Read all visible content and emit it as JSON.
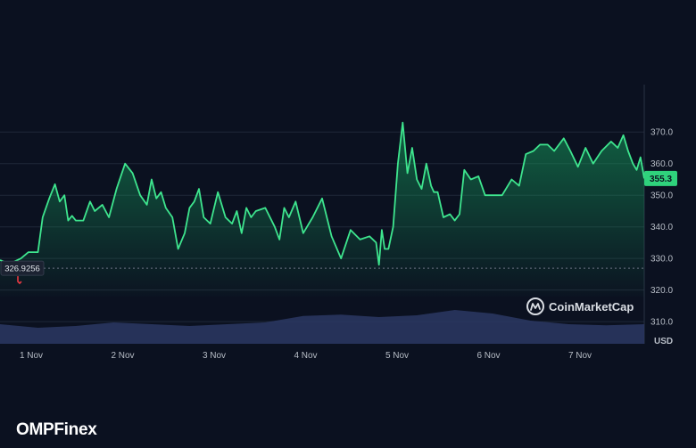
{
  "brand": "OMPFinex",
  "watermark": "CoinMarketCap",
  "chart_data": {
    "type": "area",
    "currency_label": "USD",
    "x_tick_labels": [
      "1 Nov",
      "2 Nov",
      "3 Nov",
      "4 Nov",
      "5 Nov",
      "6 Nov",
      "7 Nov"
    ],
    "y_ticks": [
      310,
      320,
      330,
      340,
      350,
      360,
      370
    ],
    "y_tick_labels": [
      "310.0",
      "320.0",
      "330.0",
      "340.0",
      "350.0",
      "360.0",
      "370.0"
    ],
    "ylim": [
      303,
      385
    ],
    "xlim": [
      0,
      6.8
    ],
    "grid": true,
    "open_price": 326.9256,
    "open_price_label": "326.9256",
    "current_price": 355.3,
    "current_price_label": "355.3",
    "colors": {
      "line": "#3ee58e",
      "area_top": "#16a35f",
      "current_tag": "#2fd27c",
      "open_marker": "#ea3943",
      "volume": "#2c3864",
      "grid": "#1f2838",
      "background": "#0b1120"
    },
    "series": [
      {
        "x": [
          0.0,
          0.08,
          0.15,
          0.22,
          0.3,
          0.4,
          0.45,
          0.52,
          0.58,
          0.63,
          0.68,
          0.72,
          0.76,
          0.8,
          0.88,
          0.95,
          1.0,
          1.08,
          1.15,
          1.23,
          1.32,
          1.4,
          1.48,
          1.55,
          1.6,
          1.65,
          1.7,
          1.75,
          1.82,
          1.88,
          1.95,
          2.0,
          2.05,
          2.1,
          2.15,
          2.22,
          2.3,
          2.38,
          2.45,
          2.5,
          2.55,
          2.6,
          2.65,
          2.7,
          2.8,
          2.9,
          2.95,
          3.0,
          3.05,
          3.12,
          3.2,
          3.3,
          3.4,
          3.5,
          3.6,
          3.7,
          3.8,
          3.9,
          3.97,
          4.0,
          4.03,
          4.06,
          4.1,
          4.15,
          4.2,
          4.25,
          4.3,
          4.35,
          4.4,
          4.45,
          4.5,
          4.55,
          4.58,
          4.62,
          4.68,
          4.75,
          4.8,
          4.85,
          4.9,
          4.97,
          5.05,
          5.12,
          5.2,
          5.3,
          5.4,
          5.48,
          5.55,
          5.63,
          5.7,
          5.78,
          5.85,
          5.95,
          6.02,
          6.1,
          6.18,
          6.26,
          6.35,
          6.45,
          6.52,
          6.58,
          6.63,
          6.68,
          6.72,
          6.76,
          6.8
        ],
        "y": [
          329.5,
          328.5,
          329.0,
          330.0,
          332.0,
          332.0,
          343.0,
          349.0,
          353.5,
          348.0,
          350.0,
          342.0,
          343.5,
          342.0,
          342.0,
          348.0,
          345.0,
          347.0,
          343.0,
          352.0,
          360.0,
          357.0,
          350.0,
          347.0,
          355.0,
          349.0,
          351.0,
          346.0,
          343.0,
          333.0,
          338.0,
          346.0,
          348.0,
          352.0,
          343.0,
          341.0,
          351.0,
          343.0,
          341.0,
          345.0,
          338.0,
          346.0,
          343.0,
          345.0,
          346.0,
          340.0,
          336.0,
          346.0,
          343.0,
          348.0,
          338.0,
          343.0,
          349.0,
          337.0,
          330.0,
          339.0,
          336.0,
          337.0,
          335.0,
          328.0,
          339.0,
          333.0,
          333.0,
          340.0,
          360.0,
          373.0,
          357.0,
          365.0,
          355.0,
          352.0,
          360.0,
          353.0,
          351.0,
          351.0,
          343.0,
          344.0,
          342.0,
          344.0,
          358.0,
          355.0,
          356.0,
          350.0,
          350.0,
          350.0,
          355.0,
          353.0,
          363.0,
          364.0,
          366.0,
          366.0,
          364.0,
          368.0,
          364.0,
          359.0,
          365.0,
          360.0,
          364.0,
          367.0,
          365.0,
          369.0,
          364.0,
          360.0,
          358.0,
          362.0,
          355.3
        ]
      }
    ],
    "volume": {
      "x": [
        0.0,
        0.4,
        0.8,
        1.2,
        1.6,
        2.0,
        2.4,
        2.8,
        3.2,
        3.6,
        4.0,
        4.4,
        4.8,
        5.2,
        5.6,
        6.0,
        6.4,
        6.8
      ],
      "values": [
        0.55,
        0.45,
        0.5,
        0.6,
        0.55,
        0.5,
        0.55,
        0.6,
        0.78,
        0.82,
        0.75,
        0.8,
        0.95,
        0.85,
        0.65,
        0.55,
        0.52,
        0.55
      ]
    }
  }
}
